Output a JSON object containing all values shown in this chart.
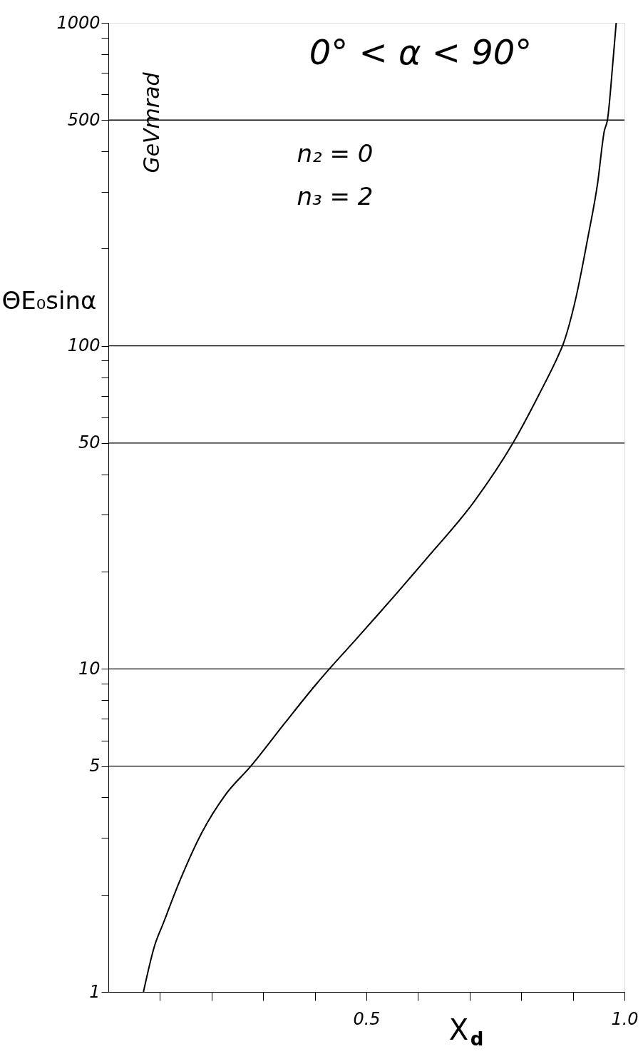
{
  "chart_data": {
    "type": "line",
    "xlabel": "X$_{d}$",
    "ylabel": "ΘE₀sinα",
    "log": "y",
    "grid": false,
    "marker": "none",
    "line_style": "solid",
    "xlim": [
      0,
      1
    ],
    "ylim": [
      1,
      1000
    ],
    "xticks": [
      {
        "value": 0.1,
        "label": null
      },
      {
        "value": 0.2,
        "label": null
      },
      {
        "value": 0.3,
        "label": null
      },
      {
        "value": 0.4,
        "label": null
      },
      0.5,
      {
        "value": 0.6,
        "label": null
      },
      {
        "value": 0.7,
        "label": null
      },
      {
        "value": 0.8,
        "label": null
      },
      {
        "value": 0.9,
        "label": null
      },
      {
        "value": 1,
        "label": "1.0"
      }
    ],
    "yticks": [
      1,
      {
        "value": 2,
        "label": null
      },
      {
        "value": 3,
        "label": null
      },
      {
        "value": 4,
        "label": null
      },
      5,
      {
        "value": 6,
        "label": null
      },
      {
        "value": 7,
        "label": null
      },
      {
        "value": 8,
        "label": null
      },
      {
        "value": 9,
        "label": null
      },
      10,
      {
        "value": 20,
        "label": null
      },
      {
        "value": 30,
        "label": null
      },
      {
        "value": 40,
        "label": null
      },
      50,
      {
        "value": 60,
        "label": null
      },
      {
        "value": 70,
        "label": null
      },
      {
        "value": 80,
        "label": null
      },
      {
        "value": 90,
        "label": null
      },
      100,
      {
        "value": 200,
        "label": null
      },
      {
        "value": 300,
        "label": null
      },
      {
        "value": 400,
        "label": null
      },
      500,
      {
        "value": 600,
        "label": null
      },
      {
        "value": 700,
        "label": null
      },
      {
        "value": 800,
        "label": null
      },
      {
        "value": 900,
        "label": null
      },
      1000
    ],
    "ref_lines": [
      {
        "axis": "y",
        "value": 5
      },
      {
        "axis": "y",
        "value": 10
      },
      {
        "axis": "y",
        "value": 50
      },
      {
        "axis": "y",
        "value": 100
      },
      {
        "axis": "y",
        "value": 500
      }
    ],
    "annotations": [
      "GeVmrad",
      "0° < α < 90°",
      "n₂ = 0",
      "n₃ = 2"
    ],
    "series": [
      {
        "color": "#000000",
        "x": [
          0.068,
          0.089,
          0.107,
          0.135,
          0.181,
          0.227,
          0.276,
          0.342,
          0.401,
          0.433,
          0.479,
          0.617,
          0.709,
          0.787,
          0.837,
          0.87,
          0.881,
          0.906,
          0.929,
          0.948,
          0.961,
          0.967,
          0.978,
          0.984
        ],
        "values": [
          1,
          1.38,
          1.64,
          2.14,
          3.11,
          4.08,
          5.0,
          6.8,
          8.9,
          10.2,
          12.3,
          22,
          33,
          51,
          72,
          92,
          101,
          141,
          216,
          319,
          463,
          500,
          770,
          1000
        ]
      }
    ]
  }
}
